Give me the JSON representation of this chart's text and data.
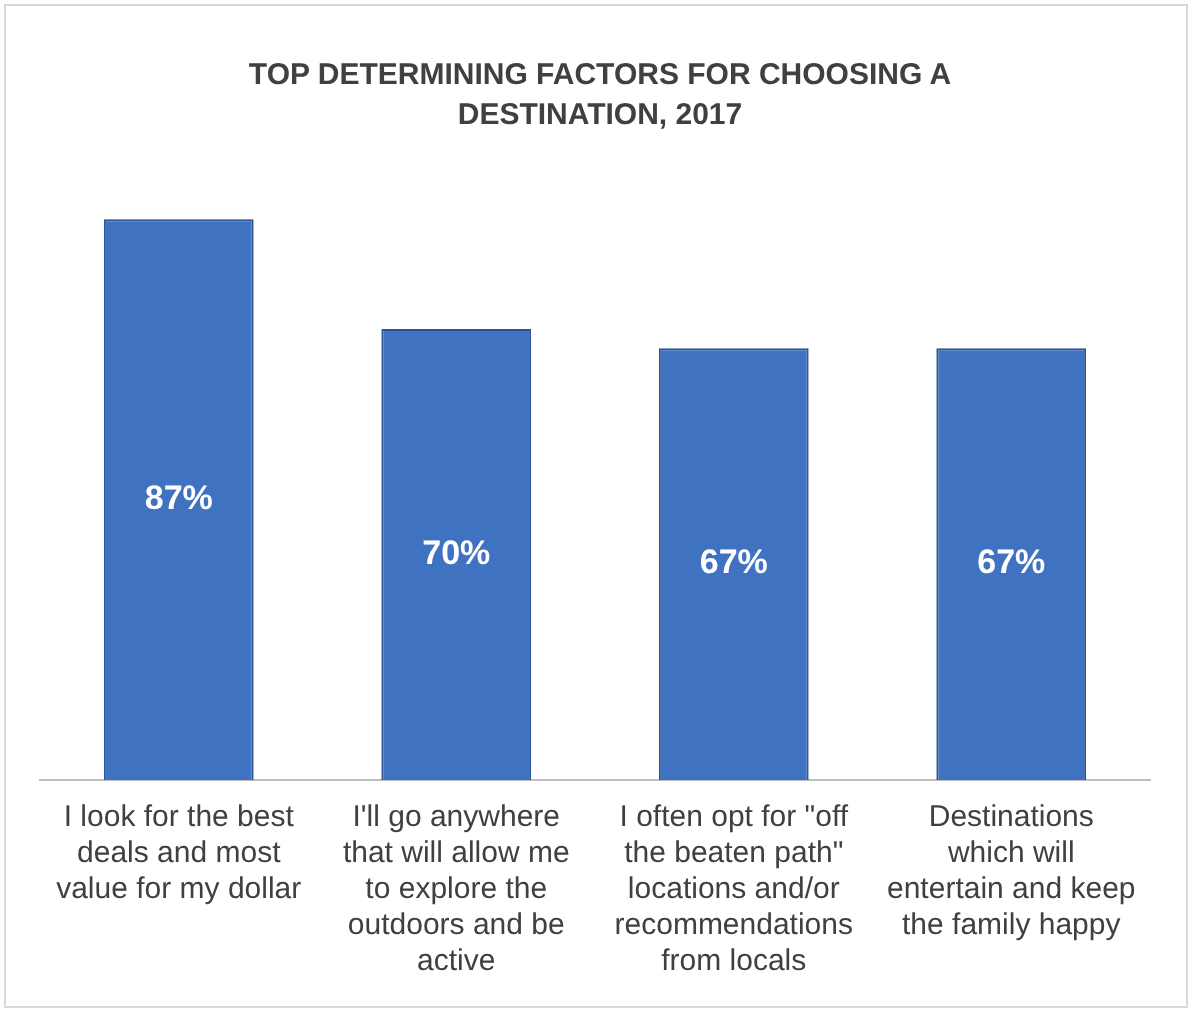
{
  "chart_data": {
    "type": "bar",
    "title": "TOP DETERMINING FACTORS FOR CHOOSING A DESTINATION, 2017",
    "categories": [
      "I look for the best deals and most value for my dollar",
      "I'll go anywhere that will allow me to explore the outdoors and be active",
      "I often opt for \"off the beaten path\" locations and/or recommendations from locals",
      "Destinations which will entertain and keep the family happy"
    ],
    "values": [
      87,
      70,
      67,
      67
    ],
    "color": "#3f73c2",
    "value_labels": [
      "87%",
      "70%",
      "67%",
      "67%"
    ],
    "tick_labels": "x",
    "grid": false,
    "legend": false
  }
}
